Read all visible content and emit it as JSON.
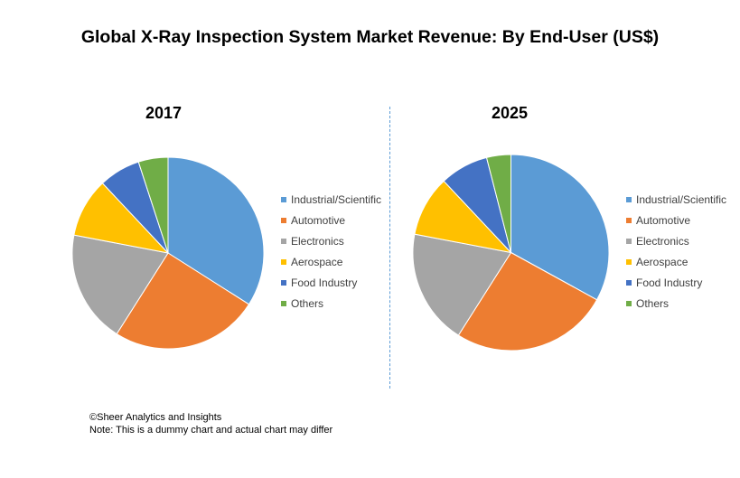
{
  "title": "Global X-Ray Inspection System Market Revenue: By End-User (US$)",
  "footer": {
    "copyright": "©Sheer Analytics and Insights",
    "note": "Note: This is a dummy chart and actual chart may differ"
  },
  "chart_data": [
    {
      "type": "pie",
      "title": "2017",
      "categories": [
        "Industrial/Scientific",
        "Automotive",
        "Electronics",
        "Aerospace",
        "Food Industry",
        "Others"
      ],
      "values": [
        34,
        25,
        19,
        10,
        7,
        5
      ],
      "colors": [
        "#5b9bd5",
        "#ed7d31",
        "#a5a5a5",
        "#ffc000",
        "#4472c4",
        "#70ad47"
      ],
      "legend": "right"
    },
    {
      "type": "pie",
      "title": "2025",
      "categories": [
        "Industrial/Scientific",
        "Automotive",
        "Electronics",
        "Aerospace",
        "Food Industry",
        "Others"
      ],
      "values": [
        33,
        26,
        19,
        10,
        8,
        4
      ],
      "colors": [
        "#5b9bd5",
        "#ed7d31",
        "#a5a5a5",
        "#ffc000",
        "#4472c4",
        "#70ad47"
      ],
      "legend": "right"
    }
  ]
}
